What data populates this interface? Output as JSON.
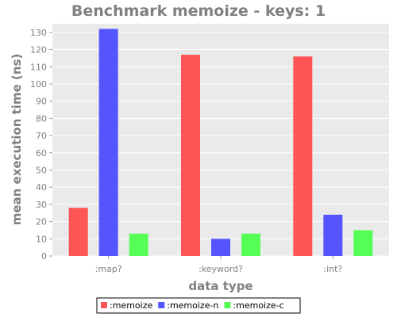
{
  "chart_data": {
    "type": "bar",
    "title": "Benchmark memoize - keys: 1",
    "xlabel": "data type",
    "ylabel": "mean execution time (ns)",
    "categories": [
      ":map?",
      ":keyword?",
      ":int?"
    ],
    "series": [
      {
        "name": ":memoize",
        "color": "#ff5555",
        "values": [
          28,
          117,
          116
        ]
      },
      {
        "name": ":memoize-n",
        "color": "#5555ff",
        "values": [
          132,
          10,
          24
        ]
      },
      {
        "name": ":memoize-c",
        "color": "#55ff55",
        "values": [
          13,
          13,
          15
        ]
      }
    ],
    "ylim": [
      0,
      135
    ],
    "yticks": [
      0,
      10,
      20,
      30,
      40,
      50,
      60,
      70,
      80,
      90,
      100,
      110,
      120,
      130
    ],
    "grid": true,
    "legend_position": "bottom"
  }
}
